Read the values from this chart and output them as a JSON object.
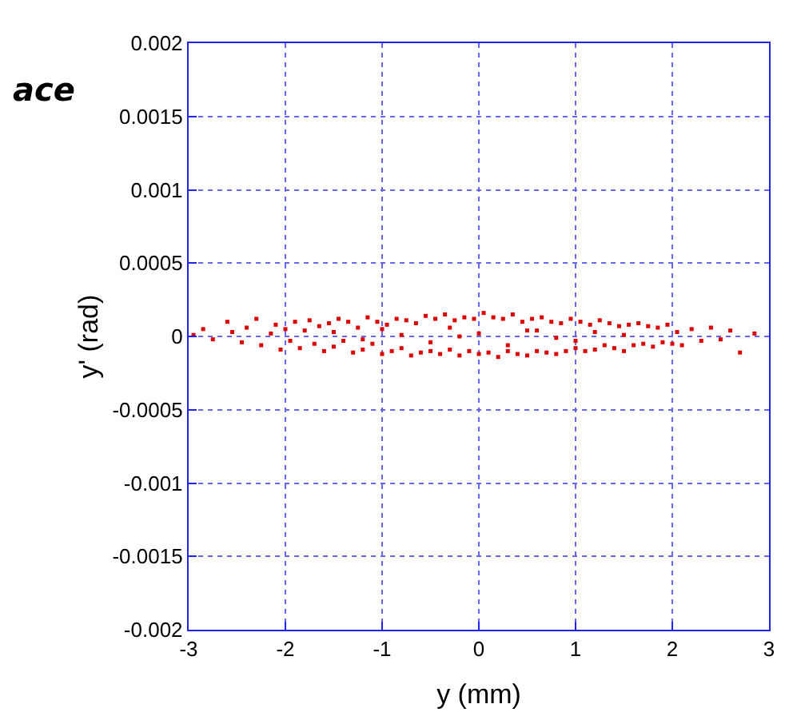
{
  "chart_data": {
    "type": "scatter",
    "xlabel": "y (mm)",
    "ylabel": "y' (rad)",
    "annotations": [
      "ace"
    ],
    "xlim": [
      -3,
      3
    ],
    "ylim": [
      -0.002,
      0.002
    ],
    "xticks": [
      -3,
      -2,
      -1,
      0,
      1,
      2,
      3
    ],
    "yticks": [
      -0.002,
      -0.0015,
      -0.001,
      -0.0005,
      0,
      0.0005,
      0.001,
      0.0015,
      0.002
    ],
    "grid": true,
    "marker": "square",
    "series": [
      {
        "color": "#dd0000",
        "x": [
          -2.95,
          -2.85,
          -2.75,
          -2.6,
          -2.55,
          -2.45,
          -2.4,
          -2.3,
          -2.25,
          -2.15,
          -2.1,
          -2.05,
          -2.0,
          -1.95,
          -1.9,
          -1.85,
          -1.8,
          -1.75,
          -1.7,
          -1.65,
          -1.6,
          -1.55,
          -1.5,
          -1.45,
          -1.4,
          -1.35,
          -1.3,
          -1.25,
          -1.2,
          -1.15,
          -1.1,
          -1.05,
          -1.0,
          -0.95,
          -0.9,
          -0.85,
          -0.8,
          -0.75,
          -0.7,
          -0.65,
          -0.6,
          -0.55,
          -0.5,
          -0.45,
          -0.4,
          -0.35,
          -0.3,
          -0.25,
          -0.2,
          -0.15,
          -0.1,
          -0.05,
          0.0,
          0.05,
          0.1,
          0.15,
          0.2,
          0.25,
          0.3,
          0.35,
          0.4,
          0.45,
          0.5,
          0.55,
          0.6,
          0.65,
          0.7,
          0.75,
          0.8,
          0.85,
          0.9,
          0.95,
          1.0,
          1.05,
          1.1,
          1.15,
          1.2,
          1.25,
          1.3,
          1.35,
          1.4,
          1.45,
          1.5,
          1.55,
          1.6,
          1.65,
          1.7,
          1.75,
          1.8,
          1.85,
          1.9,
          1.95,
          2.0,
          2.05,
          2.1,
          2.2,
          2.3,
          2.4,
          2.5,
          2.6,
          2.7,
          2.85,
          -1.5,
          -1.0,
          -0.5,
          0.0,
          0.5,
          1.0,
          1.5,
          -1.2,
          -0.3,
          0.3,
          1.2,
          -0.8,
          0.8,
          -0.2,
          0.6
        ],
        "values": [
          1e-05,
          5e-05,
          -2e-05,
          0.0001,
          3e-05,
          -4e-05,
          6e-05,
          0.00012,
          -6e-05,
          2e-05,
          8e-05,
          -9e-05,
          5e-05,
          -3e-05,
          0.0001,
          -8e-05,
          4e-05,
          0.00011,
          -5e-05,
          7e-05,
          -0.0001,
          9e-05,
          -7e-05,
          0.00012,
          -3e-05,
          0.0001,
          -0.00011,
          6e-05,
          -9e-05,
          0.00013,
          -5e-05,
          0.0001,
          -0.00012,
          8e-05,
          -0.0001,
          0.00012,
          -8e-05,
          0.00011,
          -0.00013,
          9e-05,
          -0.00011,
          0.00014,
          -0.0001,
          0.00012,
          -0.00012,
          0.00015,
          -9e-05,
          0.00011,
          -0.00013,
          0.00013,
          -0.0001,
          0.00012,
          -0.00012,
          0.00016,
          -0.00011,
          0.00013,
          -0.00014,
          0.00012,
          -0.0001,
          0.00015,
          -0.00012,
          0.0001,
          -0.00013,
          0.00012,
          -0.0001,
          0.00013,
          -0.00011,
          0.0001,
          -0.00012,
          9e-05,
          -0.0001,
          0.00012,
          -8e-05,
          0.0001,
          -0.0001,
          8e-05,
          -9e-05,
          0.00011,
          -6e-05,
          9e-05,
          -8e-05,
          7e-05,
          -0.0001,
          8e-05,
          -6e-05,
          9e-05,
          -5e-05,
          7e-05,
          -7e-05,
          6e-05,
          -4e-05,
          8e-05,
          -5e-05,
          3e-05,
          -6e-05,
          5e-05,
          -3e-05,
          6e-05,
          -2e-05,
          4e-05,
          -0.00011,
          2e-05,
          3e-05,
          5e-05,
          -4e-05,
          2e-05,
          4e-05,
          -3e-05,
          1e-05,
          -2e-05,
          6e-05,
          -6e-05,
          3e-05,
          1e-05,
          -1e-05,
          0.0,
          4e-05
        ]
      }
    ]
  }
}
